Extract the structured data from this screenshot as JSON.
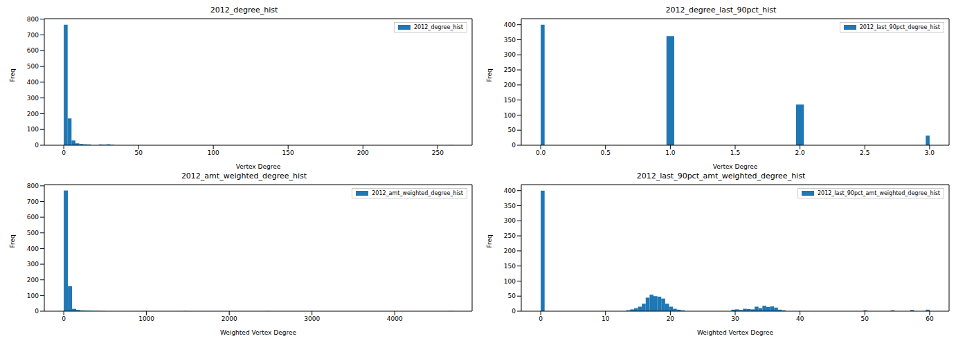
{
  "chart_data": [
    {
      "type": "histogram",
      "title": "2012_degree_hist",
      "x_label": "Vertex Degree",
      "y_label": "Freq",
      "legend": "upper right",
      "bins": [
        0,
        2.6,
        5.2,
        7.8,
        10.4,
        13,
        15.6,
        18.2,
        20.8,
        23.4,
        26,
        28.6,
        31.2,
        33.8,
        257.4,
        260
      ],
      "series": [
        {
          "name": "2012_degree_hist",
          "color": "#1f77b4",
          "values": [
            765,
            170,
            30,
            12,
            8,
            6,
            5,
            0,
            0,
            5,
            4,
            6,
            3,
            0,
            1
          ]
        }
      ],
      "xlim": [
        -13,
        273
      ],
      "xticks": [
        0,
        50,
        100,
        150,
        200,
        250
      ],
      "ylim": [
        0,
        803
      ],
      "yticks": [
        0,
        100,
        200,
        300,
        400,
        500,
        600,
        700,
        800
      ]
    },
    {
      "type": "histogram",
      "title": "2012_degree_last_90pct_hist",
      "x_label": "Vertex Degree",
      "y_label": "Freq",
      "legend": "upper right",
      "bins": [
        0,
        0.03,
        0.97,
        1.03,
        1.97,
        2.03,
        2.97,
        3.0
      ],
      "series": [
        {
          "name": "2012_last_90pct_degree_hist",
          "color": "#1f77b4",
          "values": [
            400,
            0,
            362,
            0,
            135,
            0,
            32
          ]
        }
      ],
      "xlim": [
        -0.15,
        3.15
      ],
      "xticks": [
        {
          "value": 0,
          "label": "0.0"
        },
        0.5,
        {
          "value": 1,
          "label": "1.0"
        },
        1.5,
        {
          "value": 2,
          "label": "2.0"
        },
        2.5,
        {
          "value": 3,
          "label": "3.0"
        }
      ],
      "ylim": [
        0,
        420
      ],
      "yticks": [
        0,
        50,
        100,
        150,
        200,
        250,
        300,
        350,
        400
      ]
    },
    {
      "type": "histogram",
      "title": "2012_amt_weighted_degree_hist",
      "x_label": "Weighted Vertex Degree",
      "y_label": "Freq",
      "legend": "upper right",
      "bins": [
        0,
        50,
        100,
        150,
        200,
        250,
        300,
        350,
        400,
        450,
        500,
        950,
        1000,
        1450,
        1500,
        2450,
        2500,
        4650,
        4700
      ],
      "series": [
        {
          "name": "2012_amt_weighted_degree_hist",
          "color": "#1f77b4",
          "values": [
            770,
            160,
            15,
            8,
            5,
            4,
            3,
            2,
            2,
            1,
            0,
            1,
            0,
            1,
            0,
            1,
            0,
            1
          ]
        }
      ],
      "xlim": [
        -235,
        4935
      ],
      "xticks": [
        0,
        1000,
        2000,
        3000,
        4000
      ],
      "ylim": [
        0,
        808
      ],
      "yticks": [
        0,
        100,
        200,
        300,
        400,
        500,
        600,
        700,
        800
      ]
    },
    {
      "type": "histogram",
      "title": "2012_last_90pct_amt_weighted_degree_hist",
      "x_label": "Weighted Vertex Degree",
      "y_label": "Freq",
      "legend": "upper right",
      "bins": [
        0,
        0.6,
        13.2,
        13.8,
        14.4,
        15,
        15.6,
        16.2,
        16.8,
        17.4,
        18,
        18.6,
        19.2,
        19.8,
        20.4,
        21,
        21.6,
        22.2,
        29.4,
        30,
        30.6,
        31.2,
        31.8,
        32.4,
        33,
        33.6,
        34.2,
        34.8,
        35.4,
        36,
        36.6,
        37.2,
        37.8,
        49.8,
        50.4,
        54,
        54.6,
        57,
        57.6,
        59.4,
        60
      ],
      "series": [
        {
          "name": "2012_last_90pct_amt_weighted_degree_hist",
          "color": "#1f77b4",
          "values": [
            400,
            0,
            3,
            6,
            10,
            15,
            25,
            45,
            55,
            50,
            48,
            42,
            25,
            15,
            8,
            5,
            3,
            0,
            5,
            6,
            4,
            8,
            7,
            6,
            15,
            10,
            18,
            14,
            16,
            12,
            5,
            3,
            0,
            3,
            0,
            3,
            0,
            4,
            0,
            5
          ]
        }
      ],
      "xlim": [
        -3,
        63
      ],
      "xticks": [
        0,
        10,
        20,
        30,
        40,
        50,
        60
      ],
      "ylim": [
        0,
        420
      ],
      "yticks": [
        0,
        50,
        100,
        150,
        200,
        250,
        300,
        350,
        400
      ]
    }
  ]
}
